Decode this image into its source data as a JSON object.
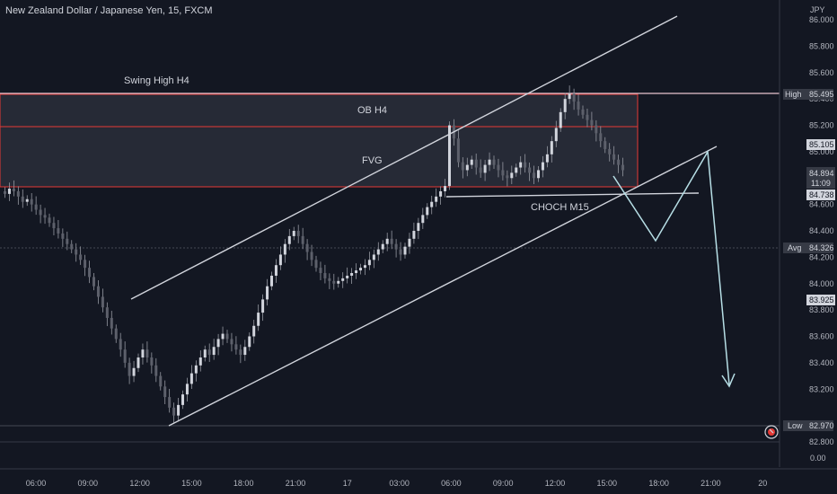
{
  "header": {
    "symbol_title": "New Zealand Dollar / Japanese Yen, 15, FXCM",
    "currency": "JPY"
  },
  "chart_data": {
    "type": "candlestick",
    "title": "New Zealand Dollar / Japanese Yen, 15, FXCM",
    "y_unit": "JPY",
    "ylim": [
      82.8,
      86.15
    ],
    "y_ticks": [
      "86.000",
      "85.800",
      "85.600",
      "85.400",
      "85.200",
      "85.000",
      "84.800",
      "84.600",
      "84.400",
      "84.200",
      "84.000",
      "83.800",
      "83.600",
      "83.400",
      "83.200",
      "82.800"
    ],
    "x_ticks": [
      "06:00",
      "09:00",
      "12:00",
      "15:00",
      "18:00",
      "21:00",
      "17",
      "03:00",
      "06:00",
      "09:00",
      "12:00",
      "15:00",
      "18:00",
      "21:00",
      "20"
    ],
    "volume_axis_label": "0.00",
    "price_tags": [
      {
        "label": "High",
        "value": "85.495"
      },
      {
        "label": "",
        "value": "85.105"
      },
      {
        "label": "",
        "value": "84.894"
      },
      {
        "label": "",
        "value": "11:09"
      },
      {
        "label": "",
        "value": "84.738"
      },
      {
        "label": "Avg",
        "value": "84.326"
      },
      {
        "label": "",
        "value": "83.925"
      },
      {
        "label": "Low",
        "value": "82.970"
      }
    ],
    "zones": [
      {
        "name": "OB H4",
        "from": 85.247,
        "to": 85.495
      },
      {
        "name": "FVG",
        "from": 84.765,
        "to": 85.247
      }
    ],
    "levels": [
      {
        "name": "Swing High H4",
        "value": 85.495
      }
    ],
    "annotations": [
      "Swing High H4",
      "OB H4",
      "FVG",
      "CHOCH M15"
    ],
    "candles": [
      84.68,
      84.72,
      84.7,
      84.66,
      84.62,
      84.64,
      84.6,
      84.56,
      84.52,
      84.5,
      84.46,
      84.42,
      84.38,
      84.34,
      84.3,
      84.26,
      84.22,
      84.18,
      84.12,
      84.05,
      83.98,
      83.9,
      83.82,
      83.74,
      83.66,
      83.58,
      83.5,
      83.4,
      83.3,
      83.36,
      83.44,
      83.5,
      83.44,
      83.38,
      83.3,
      83.22,
      83.14,
      83.06,
      83.0,
      83.08,
      83.16,
      83.24,
      83.32,
      83.38,
      83.44,
      83.5,
      83.46,
      83.52,
      83.58,
      83.62,
      83.58,
      83.54,
      83.5,
      83.46,
      83.52,
      83.6,
      83.68,
      83.78,
      83.88,
      83.98,
      84.06,
      84.14,
      84.22,
      84.3,
      84.36,
      84.4,
      84.36,
      84.3,
      84.24,
      84.18,
      84.12,
      84.08,
      84.04,
      84.02,
      84.0,
      84.02,
      84.04,
      84.06,
      84.08,
      84.1,
      84.12,
      84.14,
      84.18,
      84.22,
      84.26,
      84.3,
      84.34,
      84.3,
      84.26,
      84.22,
      84.28,
      84.34,
      84.4,
      84.46,
      84.52,
      84.58,
      84.62,
      84.66,
      84.7,
      84.74,
      85.2,
      85.1,
      84.92,
      84.86,
      84.9,
      84.94,
      84.88,
      84.84,
      84.9,
      84.94,
      84.9,
      84.86,
      84.82,
      84.8,
      84.84,
      84.88,
      84.92,
      84.88,
      84.84,
      84.8,
      84.86,
      84.92,
      84.98,
      85.08,
      85.18,
      85.3,
      85.4,
      85.44,
      85.38,
      85.32,
      85.28,
      85.24,
      85.2,
      85.14,
      85.08,
      85.02,
      84.98,
      84.94,
      84.9,
      84.86
    ]
  }
}
